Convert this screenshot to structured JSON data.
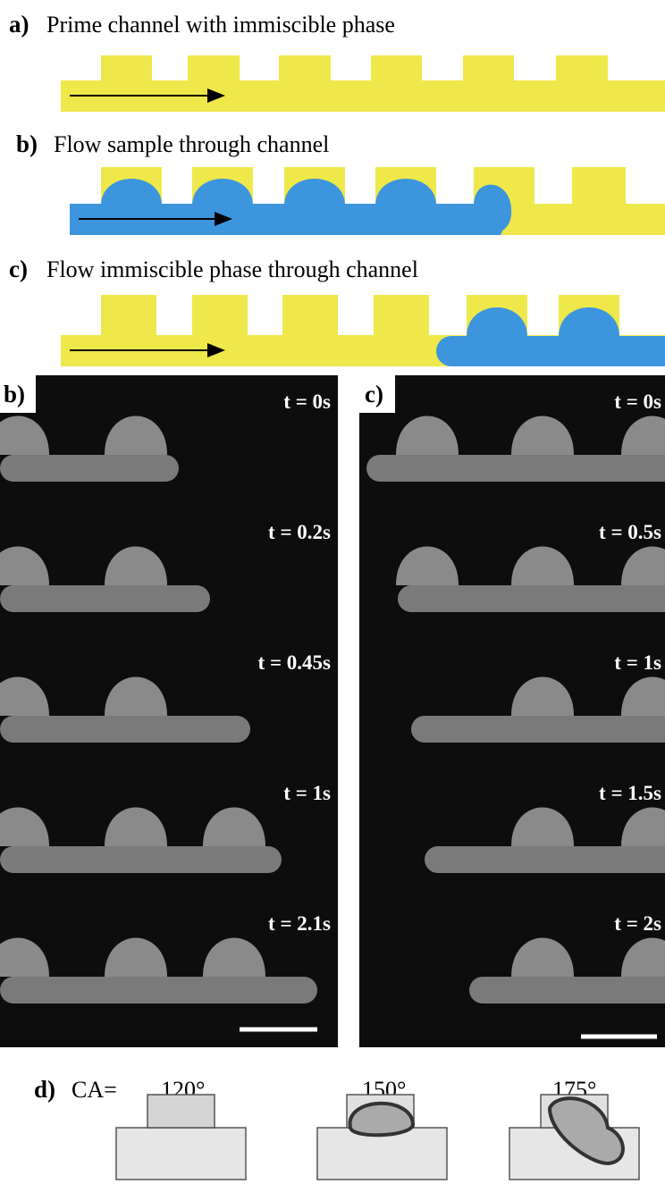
{
  "panels": [
    {
      "label": "a)",
      "title": "Prime channel with immiscible phase"
    },
    {
      "label": "b)",
      "title": "Flow sample through channel"
    },
    {
      "label": "c)",
      "title": "Flow immiscible phase through channel"
    }
  ],
  "micrographs": [
    {
      "label": "b)",
      "times": [
        "t = 0s",
        "t = 0.2s",
        "t = 0.45s",
        "t = 1s",
        "t = 2.1s"
      ]
    },
    {
      "label": "c)",
      "times": [
        "t = 0s",
        "t = 0.5s",
        "t = 1s",
        "t = 1.5s",
        "t = 2s"
      ]
    }
  ],
  "contact_angle": {
    "label": "d)",
    "prefix": "CA=",
    "angles": [
      "120°",
      "150°",
      "175°"
    ]
  }
}
